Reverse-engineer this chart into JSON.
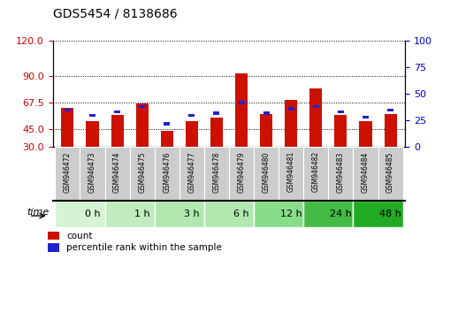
{
  "title": "GDS5454 / 8138686",
  "samples": [
    "GSM946472",
    "GSM946473",
    "GSM946474",
    "GSM946475",
    "GSM946476",
    "GSM946477",
    "GSM946478",
    "GSM946479",
    "GSM946480",
    "GSM946481",
    "GSM946482",
    "GSM946483",
    "GSM946484",
    "GSM946485"
  ],
  "count_values": [
    63,
    52,
    57,
    67,
    44,
    52,
    55,
    92,
    58,
    70,
    80,
    57,
    52,
    58
  ],
  "percentile_values": [
    35,
    30,
    33,
    38,
    22,
    30,
    32,
    42,
    32,
    36,
    38,
    33,
    28,
    35
  ],
  "time_groups": [
    {
      "label": "0 h",
      "start": 0,
      "end": 2
    },
    {
      "label": "1 h",
      "start": 2,
      "end": 4
    },
    {
      "label": "3 h",
      "start": 4,
      "end": 6
    },
    {
      "label": "6 h",
      "start": 6,
      "end": 8
    },
    {
      "label": "12 h",
      "start": 8,
      "end": 10
    },
    {
      "label": "24 h",
      "start": 10,
      "end": 12
    },
    {
      "label": "48 h",
      "start": 12,
      "end": 14
    }
  ],
  "time_group_colors": [
    "#d4f4d4",
    "#c0ecc0",
    "#b0e8b0",
    "#b0e8b0",
    "#88dd88",
    "#44bb44",
    "#22aa22"
  ],
  "bar_color": "#cc1100",
  "blue_color": "#2222cc",
  "left_yticks": [
    30,
    45,
    67.5,
    90,
    120
  ],
  "right_yticks": [
    0,
    25,
    50,
    75,
    100
  ],
  "left_ylim": [
    30,
    120
  ],
  "right_ylim": [
    0,
    100
  ],
  "left_tick_color": "#cc0000",
  "right_tick_color": "#0000cc",
  "bar_width": 0.5,
  "blue_bar_width": 0.25,
  "blue_bar_height": 2.5,
  "legend_count_label": "count",
  "legend_pct_label": "percentile rank within the sample",
  "sample_bg_color": "#cccccc",
  "title_fontsize": 10
}
